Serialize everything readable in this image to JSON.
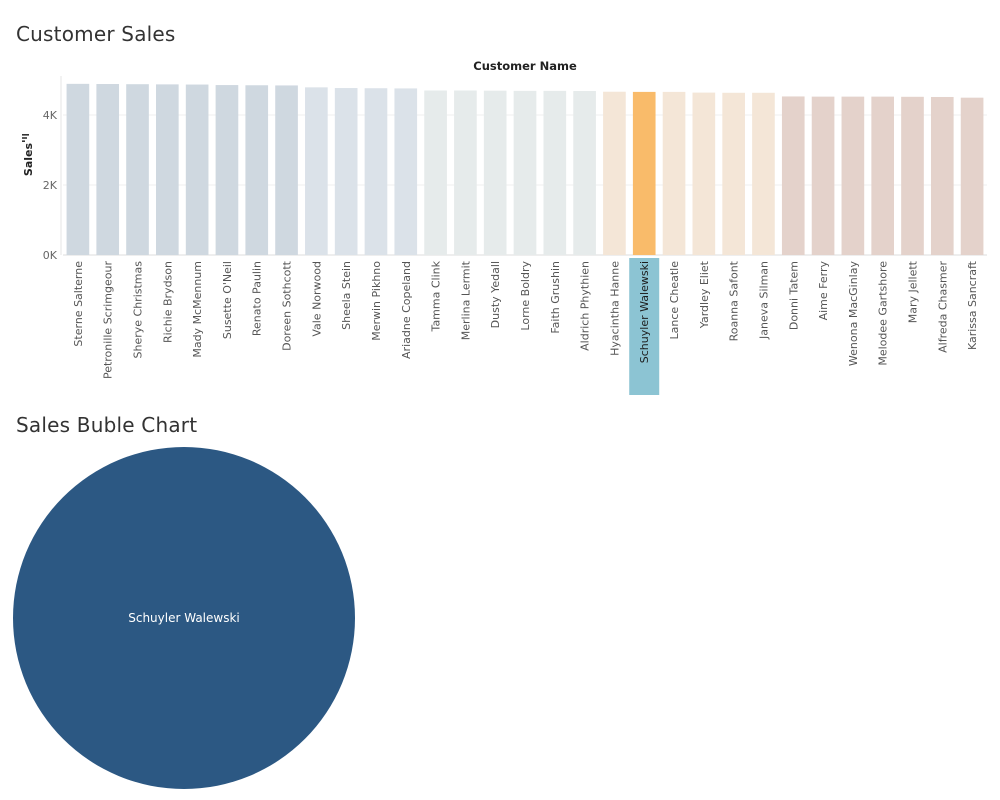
{
  "sheets": {
    "sales_title": "Customer Sales",
    "bubble_title": "Sales Buble Chart"
  },
  "colors": {
    "selected_bar": "#F9BB6A",
    "selected_label_bg": "#8CC4D3",
    "bubble": "#2C5883",
    "bar_palette": [
      "#CFD8E0",
      "#DBE2E9",
      "#E6EBEB",
      "#F4E6D7",
      "#E4D2CB"
    ]
  },
  "chart_data": [
    {
      "type": "bar",
      "column_header": "Customer Name",
      "ylabel": "Sales",
      "ylim": [
        0,
        5000
      ],
      "yticks": [
        0,
        2000,
        4000
      ],
      "ytick_labels": [
        "0K",
        "2K",
        "4K"
      ],
      "grid": true,
      "selected": "Schuyler Walewski",
      "categories": [
        "Sterne Salterne",
        "Petronille Scrimgeour",
        "Sherye Christmas",
        "Richie Brydson",
        "Mady McMennum",
        "Susette O'Neil",
        "Renato Paulin",
        "Doreen Sothcott",
        "Vale Norwood",
        "Sheela Stein",
        "Merwin Pikhno",
        "Ariadne Copeland",
        "Tamma Clink",
        "Merlina Lermit",
        "Dusty Yedall",
        "Lorne Boldry",
        "Faith Grushin",
        "Aldrich Phythien",
        "Hyacintha Hanne",
        "Schuyler Walewski",
        "Lance Cheatle",
        "Yardley Eliet",
        "Roanna Safont",
        "Janeva Silman",
        "Donni Tatem",
        "Aime Ferry",
        "Wenona MacGinlay",
        "Melodee Gartshore",
        "Mary Jellett",
        "Alfreda Chasmer",
        "Karissa Sancraft"
      ],
      "values": [
        4890,
        4885,
        4880,
        4875,
        4870,
        4855,
        4850,
        4845,
        4790,
        4770,
        4765,
        4760,
        4700,
        4700,
        4695,
        4690,
        4690,
        4685,
        4665,
        4660,
        4660,
        4640,
        4635,
        4635,
        4530,
        4525,
        4525,
        4525,
        4520,
        4515,
        4495
      ],
      "color_group": [
        0,
        0,
        0,
        0,
        0,
        0,
        0,
        0,
        1,
        1,
        1,
        1,
        2,
        2,
        2,
        2,
        2,
        2,
        3,
        3,
        3,
        3,
        3,
        3,
        4,
        4,
        4,
        4,
        4,
        4,
        4
      ]
    },
    {
      "type": "bubble",
      "labels": [
        "Schuyler Walewski"
      ],
      "values": [
        4660
      ]
    }
  ]
}
